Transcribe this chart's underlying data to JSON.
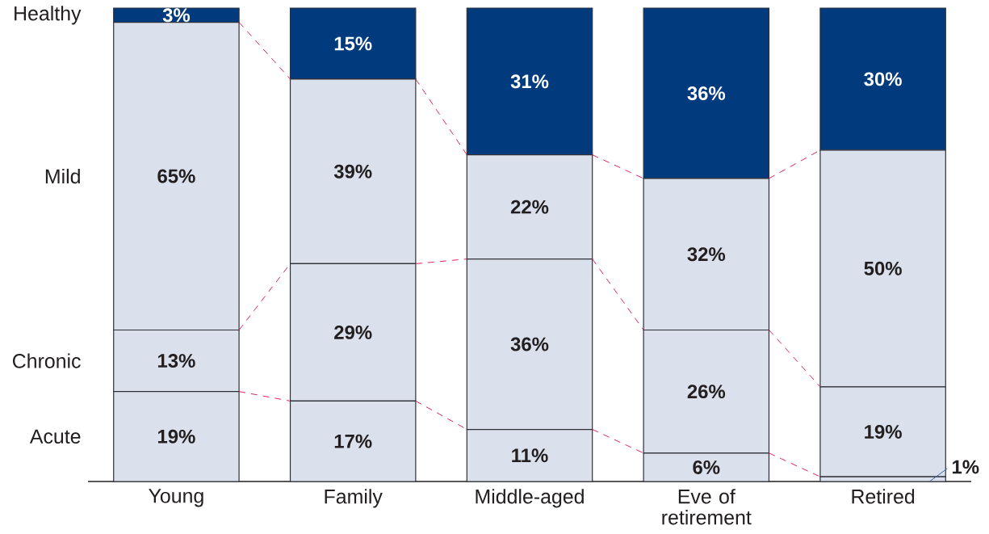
{
  "chart_data": {
    "type": "bar",
    "stacked": true,
    "tick_labels": "x",
    "categories": [
      "Young",
      "Family",
      "Middle-aged",
      "Eve of retirement",
      "Retired"
    ],
    "series": [
      {
        "name": "Acute",
        "color": "#dbe1ec",
        "values": [
          19,
          17,
          11,
          6,
          1
        ],
        "value_labels": [
          "19%",
          "17%",
          "11%",
          "6%",
          "1%"
        ]
      },
      {
        "name": "Chronic",
        "color": "#dbe1ec",
        "values": [
          13,
          29,
          36,
          26,
          19
        ],
        "value_labels": [
          "13%",
          "29%",
          "36%",
          "26%",
          "19%"
        ]
      },
      {
        "name": "Mild",
        "color": "#dbe1ec",
        "values": [
          65,
          39,
          22,
          32,
          50
        ],
        "value_labels": [
          "65%",
          "39%",
          "22%",
          "32%",
          "50%"
        ]
      },
      {
        "name": "Healthy",
        "color": "#023a7e",
        "values": [
          3,
          15,
          31,
          36,
          30
        ],
        "value_labels": [
          "3%",
          "15%",
          "31%",
          "36%",
          "30%"
        ]
      }
    ]
  }
}
